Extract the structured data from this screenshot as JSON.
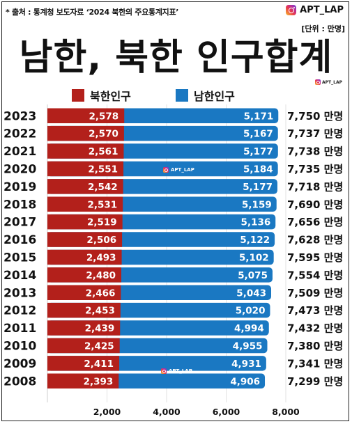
{
  "header": {
    "source": "* 출처 : 통계청 보도자료 ‘2024 북한의 주요통계지표’",
    "brand": "APT_LAP",
    "unit": "[단위 : 만명]",
    "title": "남한, 북한 인구합계",
    "title_tag": "APT_LAP"
  },
  "watermarks": [
    "APT_LAP",
    "APT_LAP"
  ],
  "icons": {
    "brand": "instagram-icon"
  },
  "colors": {
    "north": "#b3201b",
    "south": "#1a78c2"
  },
  "chart_data": {
    "type": "bar",
    "orientation": "horizontal",
    "stacked": true,
    "categories": [
      "2023",
      "2022",
      "2021",
      "2020",
      "2019",
      "2018",
      "2017",
      "2016",
      "2015",
      "2014",
      "2013",
      "2012",
      "2011",
      "2010",
      "2009",
      "2008"
    ],
    "series": [
      {
        "name": "북한인구",
        "color": "#b3201b",
        "values": [
          "2,578",
          "2,570",
          "2,561",
          "2,551",
          "2,542",
          "2,531",
          "2,519",
          "2,506",
          "2,493",
          "2,480",
          "2,466",
          "2,453",
          "2,439",
          "2,425",
          "2,411",
          "2,393"
        ]
      },
      {
        "name": "남한인구",
        "color": "#1a78c2",
        "values": [
          "5,171",
          "5,167",
          "5,177",
          "5,184",
          "5,177",
          "5,159",
          "5,136",
          "5,122",
          "5,102",
          "5,075",
          "5,043",
          "5,020",
          "4,994",
          "4,955",
          "4,931",
          "4,906"
        ]
      }
    ],
    "totals": [
      "7,750",
      "7,737",
      "7,738",
      "7,735",
      "7,718",
      "7,690",
      "7,656",
      "7,628",
      "7,595",
      "7,554",
      "7,509",
      "7,473",
      "7,432",
      "7,380",
      "7,341",
      "7,299"
    ],
    "total_suffix": "만명",
    "x_ticks": [
      "2,000",
      "4,000",
      "6,000",
      "8,000"
    ],
    "xlim": [
      0,
      8000
    ],
    "legend_position": "top"
  }
}
